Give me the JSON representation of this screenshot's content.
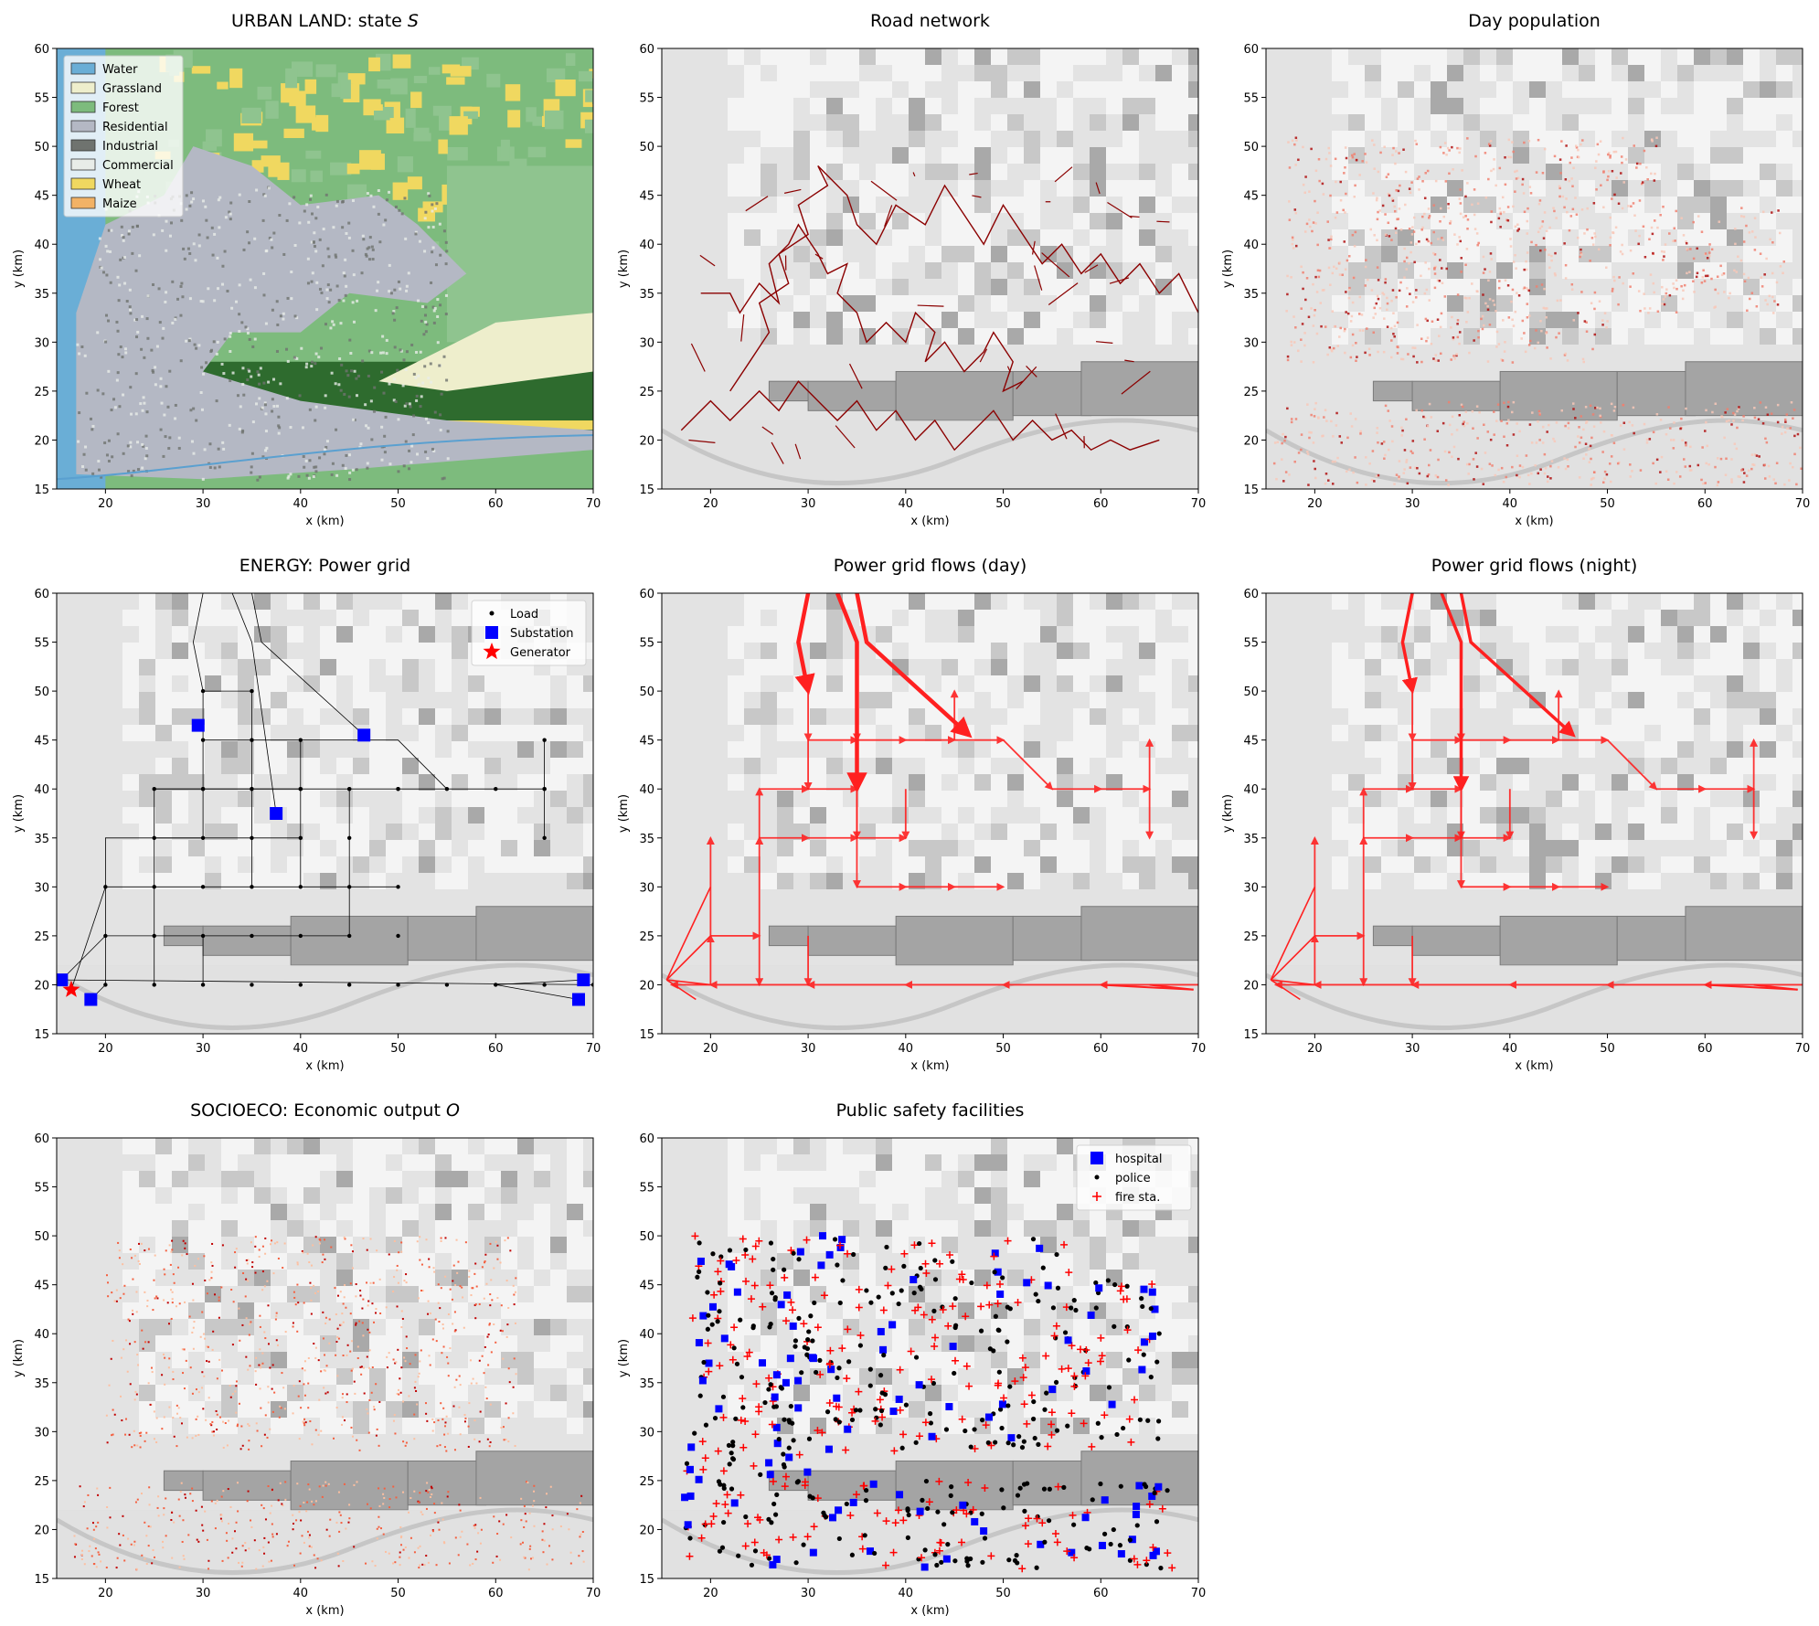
{
  "colors": {
    "background_light": "#f2f2f2",
    "terrain_mid": "#d9d9d9",
    "terrain_dark": "#9a9a9a",
    "road": "#8b0000",
    "flow": "#ff2020",
    "substation": "#0000ff",
    "generator": "#ff0000"
  },
  "chart_data": [
    {
      "id": "urban-land",
      "type": "heatmap",
      "title_prefix": "URBAN LAND: state ",
      "title_symbol": "S",
      "xlabel": "x (km)",
      "ylabel": "y (km)",
      "xlim": [
        15,
        70
      ],
      "ylim": [
        15,
        60
      ],
      "xticks": [
        "20",
        "30",
        "40",
        "50",
        "60",
        "70"
      ],
      "yticks": [
        "15",
        "20",
        "25",
        "30",
        "35",
        "40",
        "45",
        "50",
        "55",
        "60"
      ],
      "legend_position": "upper-left",
      "legend": [
        {
          "label": "Water",
          "color": "#6aaed6"
        },
        {
          "label": "Grassland",
          "color": "#eeeecc"
        },
        {
          "label": "Forest",
          "color": "#7dbb7d"
        },
        {
          "label": "Residential",
          "color": "#b4b8c4"
        },
        {
          "label": "Industrial",
          "color": "#6f736f"
        },
        {
          "label": "Commercial",
          "color": "#e8ece8"
        },
        {
          "label": "Wheat",
          "color": "#f0d860"
        },
        {
          "label": "Maize",
          "color": "#f2b266"
        }
      ]
    },
    {
      "id": "road-network",
      "type": "line",
      "title": "Road network",
      "xlabel": "x (km)",
      "ylabel": "y (km)",
      "xlim": [
        15,
        70
      ],
      "ylim": [
        15,
        60
      ],
      "xticks": [
        "20",
        "30",
        "40",
        "50",
        "60",
        "70"
      ],
      "yticks": [
        "15",
        "20",
        "25",
        "30",
        "35",
        "40",
        "45",
        "50",
        "55",
        "60"
      ],
      "series": [
        {
          "x": [
            17,
            20,
            22,
            25,
            27,
            29,
            31,
            33,
            35,
            37,
            39,
            41,
            43,
            45,
            47,
            49,
            51,
            53,
            55,
            57,
            59,
            61,
            63,
            66
          ],
          "y": [
            21,
            24,
            22,
            25,
            23,
            26,
            24,
            22,
            24,
            21,
            23,
            20,
            22,
            19,
            21,
            23,
            20,
            22,
            20,
            21,
            19,
            20,
            19,
            20
          ]
        },
        {
          "x": [
            22,
            24,
            26,
            25,
            28,
            27,
            30,
            29,
            32,
            31,
            34,
            35,
            37,
            39,
            42,
            44,
            46,
            48,
            50,
            52,
            54,
            56,
            58,
            60,
            62,
            64,
            66,
            68,
            70
          ],
          "y": [
            25,
            28,
            31,
            34,
            36,
            39,
            41,
            44,
            46,
            48,
            45,
            42,
            40,
            44,
            42,
            46,
            43,
            40,
            44,
            41,
            38,
            40,
            37,
            39,
            36,
            38,
            35,
            37,
            33
          ]
        },
        {
          "x": [
            19,
            22,
            23,
            25,
            27,
            26,
            28,
            29,
            31,
            32,
            34,
            33,
            35,
            36,
            38,
            40,
            41,
            43,
            42,
            44,
            46,
            48,
            49,
            51,
            50,
            52
          ],
          "y": [
            35,
            35,
            33,
            36,
            34,
            38,
            40,
            42,
            39,
            37,
            38,
            35,
            33,
            30,
            32,
            30,
            33,
            31,
            28,
            30,
            27,
            29,
            31,
            28,
            25,
            26
          ]
        }
      ]
    },
    {
      "id": "day-population",
      "type": "heatmap",
      "title": "Day population",
      "xlabel": "x (km)",
      "ylabel": "y (km)",
      "xlim": [
        15,
        70
      ],
      "ylim": [
        15,
        60
      ],
      "xticks": [
        "20",
        "30",
        "40",
        "50",
        "60",
        "70"
      ],
      "yticks": [
        "15",
        "20",
        "25",
        "30",
        "35",
        "40",
        "45",
        "50",
        "55",
        "60"
      ]
    },
    {
      "id": "power-grid",
      "type": "scatter",
      "title": "ENERGY: Power grid",
      "xlabel": "x (km)",
      "ylabel": "y (km)",
      "xlim": [
        15,
        70
      ],
      "ylim": [
        15,
        60
      ],
      "xticks": [
        "20",
        "30",
        "40",
        "50",
        "60",
        "70"
      ],
      "yticks": [
        "15",
        "20",
        "25",
        "30",
        "35",
        "40",
        "45",
        "50",
        "55",
        "60"
      ],
      "legend_position": "upper-right",
      "legend": [
        {
          "label": "Load",
          "marker": "dot",
          "color": "#000000"
        },
        {
          "label": "Substation",
          "marker": "square",
          "color": "#0000ff"
        },
        {
          "label": "Generator",
          "marker": "star",
          "color": "#ff0000"
        }
      ],
      "substations": {
        "x": [
          29.5,
          46.5,
          37.5,
          15.5,
          18.5,
          69,
          68.5
        ],
        "y": [
          46.5,
          45.5,
          37.5,
          20.5,
          18.5,
          20.5,
          18.5
        ]
      },
      "generators": {
        "x": [
          16.5
        ],
        "y": [
          19.5
        ]
      },
      "loads": {
        "x": [
          20,
          25,
          30,
          35,
          40,
          45,
          50,
          55,
          60,
          65,
          70,
          20,
          25,
          30,
          35,
          40,
          45,
          50,
          20,
          25,
          30,
          35,
          40,
          45,
          50,
          25,
          30,
          35,
          40,
          45,
          30,
          35,
          40,
          45,
          50,
          30,
          35,
          40,
          25,
          30,
          35,
          40,
          45,
          50,
          55,
          60,
          65,
          30,
          35,
          65,
          65,
          65
        ],
        "y": [
          20,
          20,
          20,
          20,
          20,
          20,
          20,
          20,
          20,
          20,
          20,
          25,
          25,
          25,
          25,
          25,
          25,
          25,
          30,
          30,
          30,
          30,
          30,
          30,
          30,
          35,
          35,
          35,
          35,
          35,
          40,
          40,
          40,
          40,
          40,
          45,
          45,
          45,
          40,
          40,
          40,
          40,
          40,
          40,
          40,
          40,
          40,
          50,
          50,
          45,
          40,
          35
        ]
      }
    },
    {
      "id": "flows-day",
      "type": "line",
      "title": "Power grid flows (day)",
      "xlabel": "x (km)",
      "ylabel": "y (km)",
      "xlim": [
        15,
        70
      ],
      "ylim": [
        15,
        60
      ],
      "xticks": [
        "20",
        "30",
        "40",
        "50",
        "60",
        "70"
      ],
      "yticks": [
        "15",
        "20",
        "25",
        "30",
        "35",
        "40",
        "45",
        "50",
        "55",
        "60"
      ]
    },
    {
      "id": "flows-night",
      "type": "line",
      "title": "Power grid flows (night)",
      "xlabel": "x (km)",
      "ylabel": "y (km)",
      "xlim": [
        15,
        70
      ],
      "ylim": [
        15,
        60
      ],
      "xticks": [
        "20",
        "30",
        "40",
        "50",
        "60",
        "70"
      ],
      "yticks": [
        "15",
        "20",
        "25",
        "30",
        "35",
        "40",
        "45",
        "50",
        "55",
        "60"
      ]
    },
    {
      "id": "economic-output",
      "type": "heatmap",
      "title_prefix": "SOCIOECO: Economic output ",
      "title_symbol": "O",
      "xlabel": "x (km)",
      "ylabel": "y (km)",
      "xlim": [
        15,
        70
      ],
      "ylim": [
        15,
        60
      ],
      "xticks": [
        "20",
        "30",
        "40",
        "50",
        "60",
        "70"
      ],
      "yticks": [
        "15",
        "20",
        "25",
        "30",
        "35",
        "40",
        "45",
        "50",
        "55",
        "60"
      ]
    },
    {
      "id": "public-safety",
      "type": "scatter",
      "title": "Public safety facilities",
      "xlabel": "x (km)",
      "ylabel": "y (km)",
      "xlim": [
        15,
        70
      ],
      "ylim": [
        15,
        60
      ],
      "xticks": [
        "20",
        "30",
        "40",
        "50",
        "60",
        "70"
      ],
      "yticks": [
        "15",
        "20",
        "25",
        "30",
        "35",
        "40",
        "45",
        "50",
        "55",
        "60"
      ],
      "legend_position": "upper-right",
      "legend": [
        {
          "label": "hospital",
          "marker": "square",
          "color": "#0000ff"
        },
        {
          "label": "police",
          "marker": "dot",
          "color": "#000000"
        },
        {
          "label": "fire sta.",
          "marker": "plus",
          "color": "#ff0000"
        }
      ]
    }
  ]
}
